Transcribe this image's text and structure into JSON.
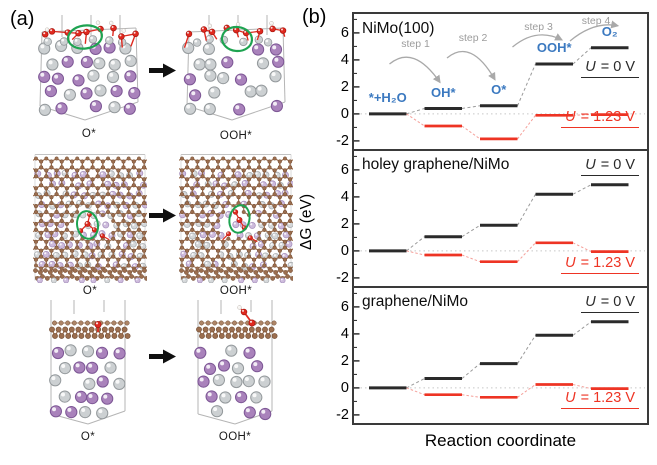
{
  "panels": {
    "a_label": "(a)",
    "b_label": "(b)"
  },
  "panel_a": {
    "rows": [
      {
        "id": "nimo-100-slab",
        "left_caption": "O*",
        "right_caption": "OOH*"
      },
      {
        "id": "holey-graphene-top",
        "left_caption": "O*",
        "right_caption": "OOH*"
      },
      {
        "id": "graphene-side",
        "left_caption": "O*",
        "right_caption": "OOH*"
      }
    ],
    "colors": {
      "metal_gray": "#ccd0d2",
      "metal_gray_stroke": "#94999c",
      "metal_purple": "#a982bb",
      "metal_purple_stroke": "#7d5795",
      "pale_purple": "#cdbbdc",
      "pale_purple_stroke": "#a791bd",
      "pale_gray": "#d4d7d9",
      "pale_gray_stroke": "#aaaeb1",
      "oxygen_red": "#e0291f",
      "oxygen_red_stroke": "#a8170f",
      "carbon_brown": "#9b6e4f",
      "carbon_brown_stroke": "#714c33",
      "carbon_back": "#ad8567",
      "hydrogen_white": "#f7f5f2",
      "hydrogen_stroke": "#c7c0ba",
      "highlight_green": "#1ea351",
      "wireframe": "#b5b5b5",
      "arrow": "#101010"
    }
  },
  "axes": {
    "ylabel": "ΔG (eV)",
    "xlabel": "Reaction coordinate",
    "zero_line_color": "#c6c6c6",
    "frame_color": "#3a3a3a"
  },
  "chart_data": [
    {
      "type": "line",
      "subtype": "cumulative-free-energy-steps",
      "title": "NiMo(100)",
      "x": [
        1,
        2,
        3,
        4,
        5
      ],
      "series": [
        {
          "name": "U = 0 V",
          "color": "#2a2a2a",
          "values": [
            0,
            0.4,
            0.6,
            3.7,
            4.9
          ]
        },
        {
          "name": "U = 1.23 V",
          "color": "#ee3424",
          "values": [
            0,
            -0.9,
            -1.85,
            -0.1,
            -0.05
          ]
        }
      ],
      "ylim": [
        -2.6,
        7.4
      ],
      "yticks": [
        6,
        4,
        2,
        0,
        -2
      ],
      "species_labels": [
        "*+H₂O",
        "OH*",
        "O*",
        "OOH*",
        "O₂"
      ],
      "species_color": "#3b79c0",
      "step_labels": [
        "step 1",
        "step 2",
        "step 3",
        "step 4"
      ],
      "label_u0": {
        "sym": "U",
        "rest": " = 0 V"
      },
      "label_u123": {
        "sym": "U",
        "rest": " = 1.23 V"
      }
    },
    {
      "type": "line",
      "subtype": "cumulative-free-energy-steps",
      "title": "holey graphene/NiMo",
      "x": [
        1,
        2,
        3,
        4,
        5
      ],
      "series": [
        {
          "name": "U = 0 V",
          "color": "#2a2a2a",
          "values": [
            0,
            1.05,
            1.9,
            4.2,
            4.9
          ]
        },
        {
          "name": "U = 1.23 V",
          "color": "#ee3424",
          "values": [
            0,
            -0.3,
            -0.8,
            0.6,
            -0.05
          ]
        }
      ],
      "ylim": [
        -2.6,
        7.4
      ],
      "yticks": [
        6,
        4,
        2,
        0,
        -2
      ],
      "label_u0": {
        "sym": "U",
        "rest": " = 0 V"
      },
      "label_u123": {
        "sym": "U",
        "rest": " = 1.23 V"
      }
    },
    {
      "type": "line",
      "subtype": "cumulative-free-energy-steps",
      "title": "graphene/NiMo",
      "x": [
        1,
        2,
        3,
        4,
        5
      ],
      "series": [
        {
          "name": "U = 0 V",
          "color": "#2a2a2a",
          "values": [
            0,
            0.7,
            1.8,
            3.9,
            4.9
          ]
        },
        {
          "name": "U = 1.23 V",
          "color": "#ee3424",
          "values": [
            0,
            -0.5,
            -0.7,
            0.25,
            -0.05
          ]
        }
      ],
      "ylim": [
        -2.6,
        7.4
      ],
      "yticks": [
        6,
        4,
        2,
        0,
        -2
      ],
      "label_u0": {
        "sym": "U",
        "rest": " = 0 V"
      },
      "label_u123": {
        "sym": "U",
        "rest": " = 1.23 V"
      }
    }
  ]
}
